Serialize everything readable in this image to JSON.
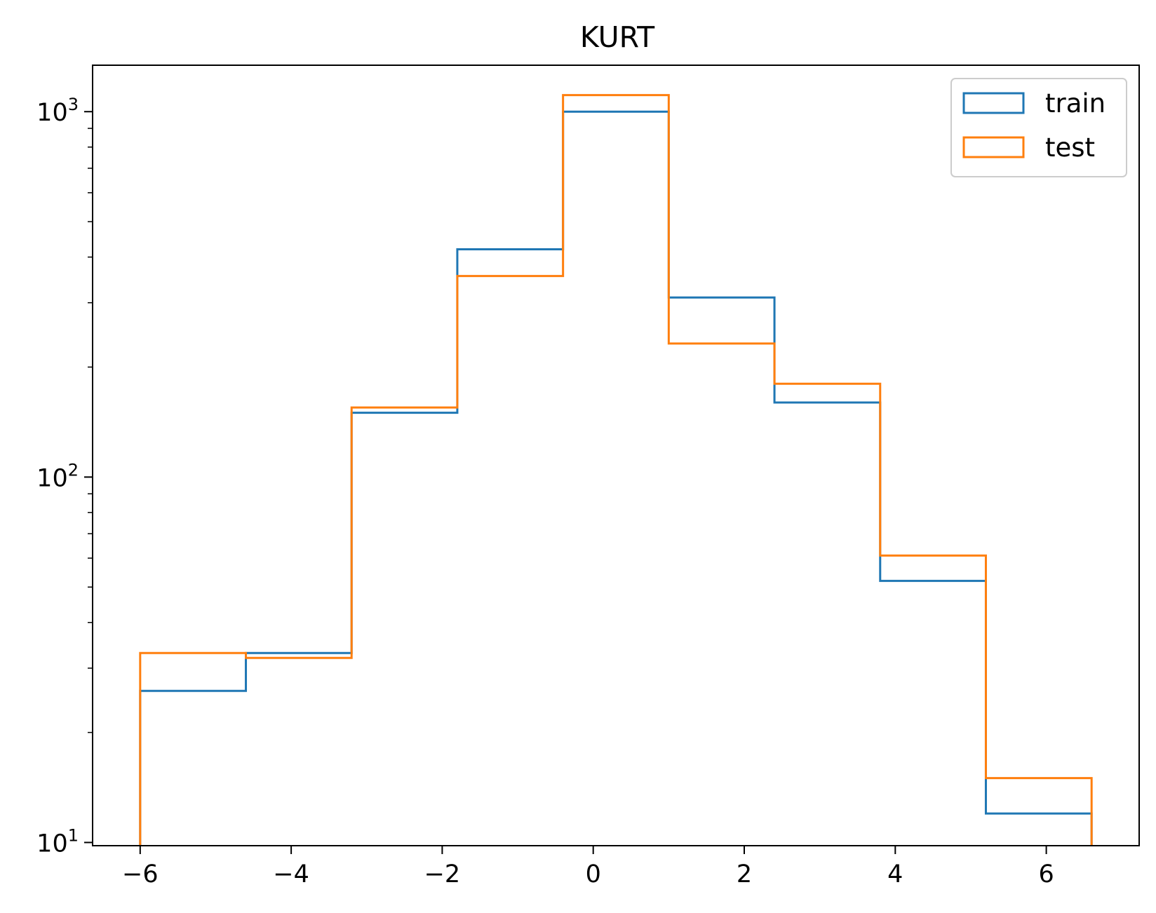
{
  "chart_data": {
    "type": "histogram",
    "title": "KURT",
    "xlabel": "",
    "ylabel": "",
    "yscale": "log",
    "xlim": [
      -6.63,
      7.23
    ],
    "ylim": [
      9.8,
      1340
    ],
    "x_ticks": [
      -6,
      -4,
      -2,
      0,
      2,
      4,
      6
    ],
    "x_tick_labels": [
      "−6",
      "−4",
      "−2",
      "0",
      "2",
      "4",
      "6"
    ],
    "y_ticks": [
      10,
      100,
      1000
    ],
    "y_tick_labels": [
      {
        "base": "10",
        "exp": "1"
      },
      {
        "base": "10",
        "exp": "2"
      },
      {
        "base": "10",
        "exp": "3"
      }
    ],
    "bin_edges": [
      -6.0,
      -4.6,
      -3.2,
      -1.8,
      -0.4,
      1.0,
      2.4,
      3.8,
      5.2,
      6.6
    ],
    "series": [
      {
        "name": "train",
        "color": "#1f77b4",
        "values": [
          26,
          33,
          150,
          420,
          1000,
          310,
          160,
          52,
          12
        ]
      },
      {
        "name": "test",
        "color": "#ff7f0e",
        "values": [
          33,
          32,
          155,
          355,
          1110,
          232,
          180,
          61,
          15
        ]
      }
    ],
    "legend_position": "top-right",
    "grid": false
  }
}
